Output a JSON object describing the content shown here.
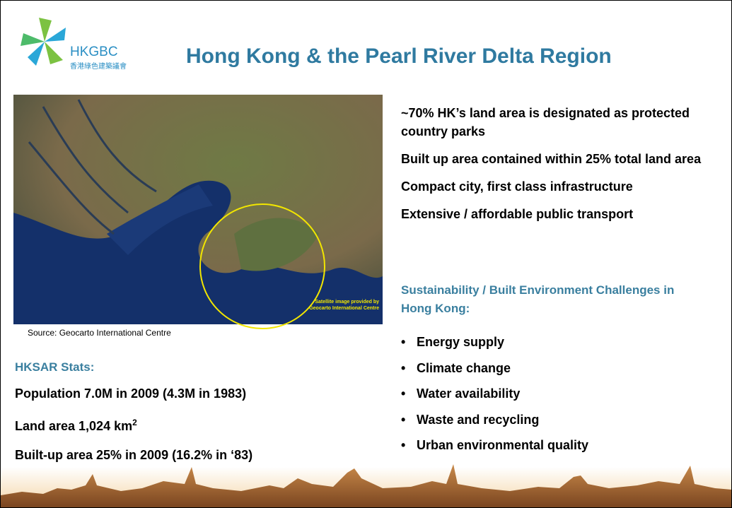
{
  "logo": {
    "name": "HKGBC",
    "subtitle": "香港綠色建築議會"
  },
  "title": "Hong Kong & the Pearl River Delta Region",
  "image": {
    "credit": [
      "Satellite image provided by",
      "Geocarto International Centre"
    ],
    "source": "Source: Geocarto International Centre"
  },
  "stats": {
    "heading": "HKSAR Stats:",
    "lines": [
      {
        "text": "Population 7.0M in 2009 (4.3M in 1983)"
      },
      {
        "text": "Land area 1,024 km",
        "sup": "2"
      },
      {
        "text": "Built-up area 25% in 2009 (16.2% in ‘83)"
      }
    ]
  },
  "facts": [
    "~70% HK’s land area is designated as protected country parks",
    "Built up area contained within 25% total land area",
    "Compact city, first class infrastructure",
    "Extensive / affordable public transport"
  ],
  "challenges": {
    "heading": "Sustainability / Built Environment Challenges in Hong Kong:",
    "items": [
      "Energy supply",
      "Climate change",
      "Water availability",
      "Waste and recycling",
      "Urban environmental quality"
    ]
  }
}
